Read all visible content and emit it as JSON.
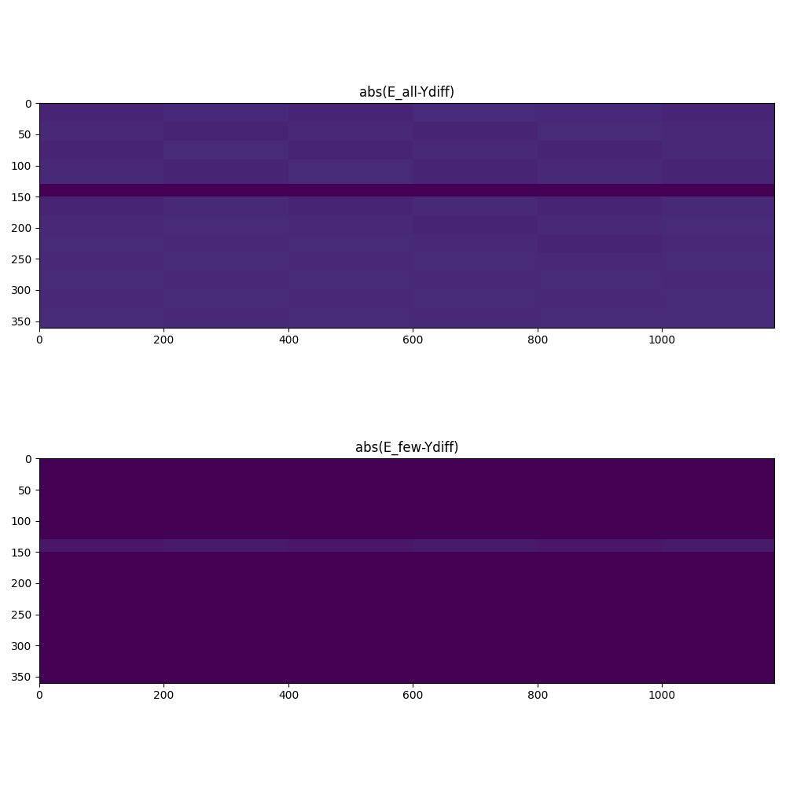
{
  "chart_data": [
    {
      "type": "heatmap",
      "title": "abs(E_all-Ydiff)",
      "x_edges": [
        0,
        200,
        400,
        600,
        800,
        1000,
        1180
      ],
      "y_edges": [
        0,
        30,
        60,
        90,
        130,
        150,
        180,
        210,
        240,
        270,
        300,
        330,
        360
      ],
      "cells": [
        [
          0.1,
          0.11,
          0.1,
          0.12,
          0.11,
          0.1
        ],
        [
          0.11,
          0.1,
          0.11,
          0.1,
          0.12,
          0.11
        ],
        [
          0.1,
          0.12,
          0.1,
          0.11,
          0.1,
          0.11
        ],
        [
          0.11,
          0.1,
          0.12,
          0.1,
          0.11,
          0.1
        ],
        [
          0.0,
          0.0,
          0.0,
          0.0,
          0.0,
          0.0
        ],
        [
          0.1,
          0.11,
          0.1,
          0.11,
          0.1,
          0.11
        ],
        [
          0.11,
          0.12,
          0.11,
          0.1,
          0.11,
          0.12
        ],
        [
          0.12,
          0.11,
          0.12,
          0.11,
          0.1,
          0.11
        ],
        [
          0.11,
          0.12,
          0.11,
          0.12,
          0.11,
          0.12
        ],
        [
          0.12,
          0.11,
          0.12,
          0.11,
          0.12,
          0.11
        ],
        [
          0.11,
          0.12,
          0.11,
          0.12,
          0.11,
          0.12
        ],
        [
          0.12,
          0.11,
          0.12,
          0.11,
          0.12,
          0.12
        ]
      ],
      "value_range": [
        0,
        1
      ],
      "xlim": [
        0,
        1180
      ],
      "xticks": [
        0,
        200,
        400,
        600,
        800,
        1000
      ],
      "ylim": [
        360,
        0
      ],
      "yticks": [
        0,
        50,
        100,
        150,
        200,
        250,
        300,
        350
      ]
    },
    {
      "type": "heatmap",
      "title": "abs(E_few-Ydiff)",
      "x_edges": [
        0,
        200,
        400,
        600,
        800,
        1000,
        1180
      ],
      "y_edges": [
        0,
        30,
        60,
        90,
        130,
        150,
        180,
        210,
        240,
        270,
        300,
        330,
        360
      ],
      "cells": [
        [
          0.0,
          0.0,
          0.0,
          0.0,
          0.0,
          0.0
        ],
        [
          0.0,
          0.0,
          0.0,
          0.0,
          0.0,
          0.0
        ],
        [
          0.0,
          0.0,
          0.0,
          0.0,
          0.0,
          0.0
        ],
        [
          0.0,
          0.0,
          0.0,
          0.0,
          0.0,
          0.0
        ],
        [
          0.06,
          0.07,
          0.06,
          0.07,
          0.06,
          0.07
        ],
        [
          0.0,
          0.0,
          0.0,
          0.0,
          0.0,
          0.0
        ],
        [
          0.0,
          0.0,
          0.0,
          0.0,
          0.0,
          0.0
        ],
        [
          0.0,
          0.0,
          0.0,
          0.0,
          0.0,
          0.0
        ],
        [
          0.0,
          0.0,
          0.0,
          0.0,
          0.0,
          0.0
        ],
        [
          0.0,
          0.0,
          0.0,
          0.0,
          0.0,
          0.0
        ],
        [
          0.0,
          0.0,
          0.0,
          0.0,
          0.0,
          0.0
        ],
        [
          0.0,
          0.0,
          0.0,
          0.0,
          0.0,
          0.0
        ]
      ],
      "value_range": [
        0,
        1
      ],
      "xlim": [
        0,
        1180
      ],
      "xticks": [
        0,
        200,
        400,
        600,
        800,
        1000
      ],
      "ylim": [
        360,
        0
      ],
      "yticks": [
        0,
        50,
        100,
        150,
        200,
        250,
        300,
        350
      ]
    }
  ]
}
